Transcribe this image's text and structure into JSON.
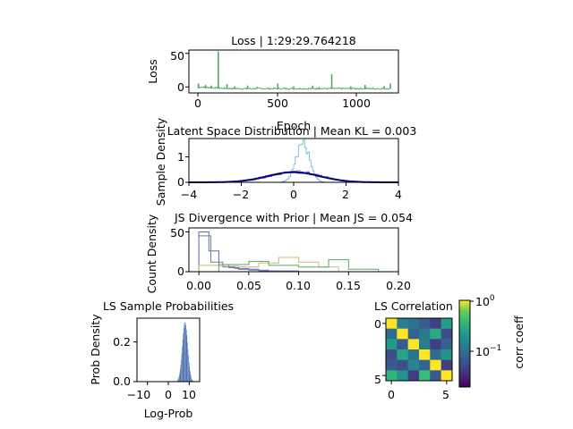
{
  "panels": {
    "loss": {
      "title": "Loss | 1:29:29.764218",
      "xlabel": "Epoch",
      "ylabel": "Loss",
      "xticks": [
        "0",
        "500",
        "1000"
      ],
      "yticks": [
        "0",
        "50"
      ]
    },
    "latent": {
      "title": "Latent Space Distribution | Mean KL = 0.003",
      "ylabel": "Sample Density",
      "xticks": [
        "−4",
        "−2",
        "0",
        "2",
        "4"
      ],
      "yticks": [
        "0",
        "1"
      ]
    },
    "js": {
      "title": "JS Divergence with Prior | Mean JS = 0.054",
      "ylabel": "Count Density",
      "xticks": [
        "0.00",
        "0.05",
        "0.10",
        "0.15",
        "0.20"
      ],
      "yticks": [
        "0",
        "50"
      ]
    },
    "lsprob": {
      "title": "LS Sample Probabilities",
      "xlabel": "Log-Prob",
      "ylabel": "Prob Density",
      "xticks": [
        "−10",
        "0",
        "10"
      ],
      "yticks": [
        "0.0",
        "0.2"
      ]
    },
    "corr": {
      "title": "LS Correlation",
      "xticks": [
        "0",
        "5"
      ],
      "yticks": [
        "0",
        "5"
      ],
      "colorbar_label": "corr coeff",
      "colorbar_ticks": [
        "10",
        "10"
      ],
      "colorbar_exps": [
        "0",
        "−1"
      ]
    }
  },
  "chart_data": [
    {
      "id": "loss",
      "type": "line",
      "xlim": [
        -60,
        1260
      ],
      "ylim": [
        -9,
        55
      ],
      "color": "#55a868",
      "base_level": -2.5,
      "spikes": [
        {
          "x": 0,
          "y": 5
        },
        {
          "x": 45,
          "y": 3
        },
        {
          "x": 80,
          "y": 2
        },
        {
          "x": 125,
          "y": 53
        },
        {
          "x": 180,
          "y": 4
        },
        {
          "x": 230,
          "y": 1
        },
        {
          "x": 310,
          "y": 2
        },
        {
          "x": 370,
          "y": 0
        },
        {
          "x": 500,
          "y": 5
        },
        {
          "x": 600,
          "y": 1
        },
        {
          "x": 720,
          "y": 2
        },
        {
          "x": 760,
          "y": 0
        },
        {
          "x": 840,
          "y": 19
        },
        {
          "x": 960,
          "y": 1
        },
        {
          "x": 1050,
          "y": 3
        },
        {
          "x": 1170,
          "y": 1
        },
        {
          "x": 1210,
          "y": 5
        }
      ],
      "grid": false
    },
    {
      "id": "latent",
      "type": "line",
      "xlim": [
        -4,
        4
      ],
      "ylim": [
        0,
        1.72
      ],
      "prior": {
        "mean": 0,
        "std": 1,
        "color": "#00008b"
      },
      "samples": [
        {
          "name": "",
          "mean": 0.05,
          "std": 1.0,
          "color": "#4c72b0"
        },
        {
          "name": "",
          "mean": 0.1,
          "std": 0.95,
          "color": "#8172b2"
        },
        {
          "name": "",
          "mean": 0.35,
          "std": 0.26,
          "color": "#64b5cd"
        },
        {
          "name": "",
          "mean": 0.0,
          "std": 1.05,
          "color": "#c44e52"
        }
      ],
      "grid": false
    },
    {
      "id": "js",
      "type": "bar",
      "xlim": [
        -0.01,
        0.2
      ],
      "ylim": [
        0,
        55
      ],
      "series": [
        {
          "name": "",
          "color": "#4c72b0",
          "bins": [
            0.0,
            0.01,
            0.02,
            0.03,
            0.04,
            0.06,
            0.08,
            0.1
          ],
          "values": [
            50,
            26,
            9,
            5,
            3,
            1,
            0
          ]
        },
        {
          "name": "",
          "color": "#8172b2",
          "bins": [
            0.0,
            0.012,
            0.024,
            0.036,
            0.05,
            0.07,
            0.1
          ],
          "values": [
            45,
            12,
            6,
            4,
            2,
            1
          ]
        },
        {
          "name": "",
          "color": "#ccb974",
          "bins": [
            0.0,
            0.02,
            0.04,
            0.06,
            0.08,
            0.1,
            0.12,
            0.14
          ],
          "values": [
            8,
            7,
            6,
            11,
            18,
            12,
            6
          ]
        },
        {
          "name": "",
          "color": "#55a868",
          "bins": [
            0.02,
            0.05,
            0.07,
            0.1,
            0.13,
            0.15,
            0.18
          ],
          "values": [
            9,
            13,
            8,
            6,
            15,
            3
          ]
        }
      ],
      "grid": false
    },
    {
      "id": "lsprob",
      "type": "bar",
      "xlim": [
        -15,
        15
      ],
      "ylim": [
        0,
        0.32
      ],
      "color": "#4c72b0",
      "distribution": {
        "mean": 8,
        "std": 1.3,
        "peak": 0.3
      },
      "grid": false
    },
    {
      "id": "corr",
      "type": "heatmap",
      "size": 6,
      "values": [
        [
          1.0,
          0.1,
          0.08,
          0.05,
          0.03,
          0.2
        ],
        [
          0.07,
          1.0,
          0.06,
          0.09,
          0.25,
          0.04
        ],
        [
          0.18,
          0.05,
          1.0,
          0.1,
          0.03,
          0.06
        ],
        [
          0.04,
          0.22,
          0.08,
          1.0,
          0.07,
          0.15
        ],
        [
          0.05,
          0.04,
          0.12,
          0.06,
          1.0,
          0.03
        ],
        [
          0.3,
          0.15,
          0.03,
          0.35,
          0.05,
          1.0
        ]
      ],
      "colormap": "viridis",
      "scale": "log",
      "vmin": 0.012,
      "vmax": 1.0
    }
  ]
}
